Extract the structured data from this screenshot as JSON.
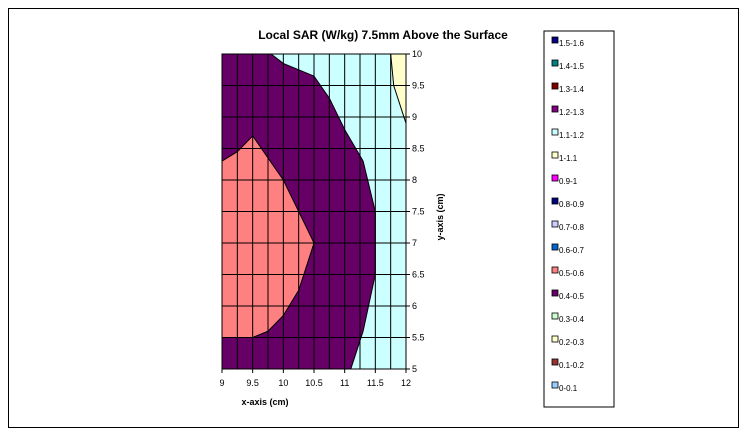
{
  "chart_data": {
    "type": "contour",
    "title": "Local SAR (W/kg) 7.5mm Above the Surface",
    "xlabel": "x-axis (cm)",
    "ylabel": "y-axis (cm)",
    "x_ticks": [
      "9",
      "9.5",
      "10",
      "10.5",
      "11",
      "11.5",
      "12"
    ],
    "y_ticks": [
      "5",
      "5.5",
      "6",
      "6.5",
      "7",
      "7.5",
      "8",
      "8.5",
      "9",
      "9.5",
      "10"
    ],
    "xlim": [
      9,
      12
    ],
    "ylim": [
      5,
      10
    ],
    "grid": true,
    "legend_position": "right",
    "legend": [
      {
        "label": "1.5-1.6",
        "color": "#000080"
      },
      {
        "label": "1.4-1.5",
        "color": "#008080"
      },
      {
        "label": "1.3-1.4",
        "color": "#800000"
      },
      {
        "label": "1.2-1.3",
        "color": "#800080"
      },
      {
        "label": "1.1-1.2",
        "color": "#ccffff"
      },
      {
        "label": "1-1.1",
        "color": "#ffffcc"
      },
      {
        "label": "0.9-1",
        "color": "#ff00ff"
      },
      {
        "label": "0.8-0.9",
        "color": "#000080"
      },
      {
        "label": "0.7-0.8",
        "color": "#ccccff"
      },
      {
        "label": "0.6-0.7",
        "color": "#0066cc"
      },
      {
        "label": "0.5-0.6",
        "color": "#ff8080"
      },
      {
        "label": "0.4-0.5",
        "color": "#660066"
      },
      {
        "label": "0.3-0.4",
        "color": "#ccffcc"
      },
      {
        "label": "0.2-0.3",
        "color": "#ffffcc"
      },
      {
        "label": "0.1-0.2",
        "color": "#993333"
      },
      {
        "label": "0-0.1",
        "color": "#99ccff"
      }
    ],
    "regions": [
      {
        "range": "1.1-1.2",
        "color": "#ccffff",
        "polygon": [
          [
            9,
            5
          ],
          [
            12,
            5
          ],
          [
            12,
            10
          ],
          [
            9,
            10
          ]
        ]
      },
      {
        "range": "1-1.1",
        "color": "#ffffcc",
        "polygon": [
          [
            11.75,
            10
          ],
          [
            12,
            10
          ],
          [
            12,
            8.9
          ],
          [
            11.8,
            9.5
          ]
        ]
      },
      {
        "range": "0.4-0.5",
        "color": "#660066",
        "polygon": [
          [
            9,
            5
          ],
          [
            11.1,
            5
          ],
          [
            11.3,
            5.6
          ],
          [
            11.5,
            6.5
          ],
          [
            11.5,
            7.5
          ],
          [
            11.3,
            8.3
          ],
          [
            11,
            8.8
          ],
          [
            10.75,
            9.3
          ],
          [
            10.5,
            9.65
          ],
          [
            10,
            9.85
          ],
          [
            9.8,
            10
          ],
          [
            9,
            10
          ]
        ]
      },
      {
        "range": "0.5-0.6",
        "color": "#ff8080",
        "polygon": [
          [
            9,
            5.5
          ],
          [
            9.5,
            5.5
          ],
          [
            9.75,
            5.6
          ],
          [
            10,
            5.85
          ],
          [
            10.25,
            6.25
          ],
          [
            10.5,
            7
          ],
          [
            10.25,
            7.5
          ],
          [
            10,
            8
          ],
          [
            9.75,
            8.35
          ],
          [
            9.5,
            8.7
          ],
          [
            9.25,
            8.45
          ],
          [
            9,
            8.3
          ]
        ]
      }
    ]
  }
}
